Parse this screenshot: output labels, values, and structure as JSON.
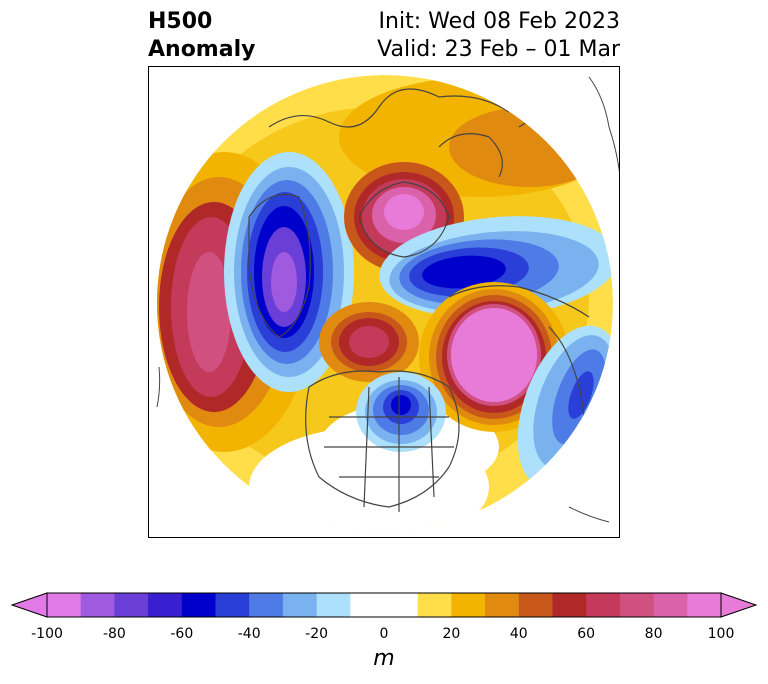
{
  "title": {
    "line1": "H500",
    "line2": "Anomaly",
    "init": "Init: Wed 08 Feb 2023",
    "valid": "Valid: 23 Feb – 01 Mar"
  },
  "colorbar": {
    "unit": "m",
    "range": [
      -100,
      100
    ],
    "ticks": [
      "-100",
      "-80",
      "-60",
      "-40",
      "-20",
      "0",
      "20",
      "40",
      "60",
      "80",
      "100"
    ],
    "extend": "both",
    "colors": [
      "#e07ae6",
      "#a05ae0",
      "#6a3fd8",
      "#3a1fd0",
      "#0000cc",
      "#2a3ed8",
      "#4f7be6",
      "#7ab2f0",
      "#ade0fa",
      "#ffffff",
      "#ffffff",
      "#ffde4a",
      "#f2b400",
      "#e08a10",
      "#c8581a",
      "#b02828",
      "#c43a5a",
      "#d05080",
      "#da62aa",
      "#e87ad8"
    ]
  },
  "map": {
    "projection": "north-polar-stereographic",
    "field": "500 hPa geopotential height anomaly"
  }
}
